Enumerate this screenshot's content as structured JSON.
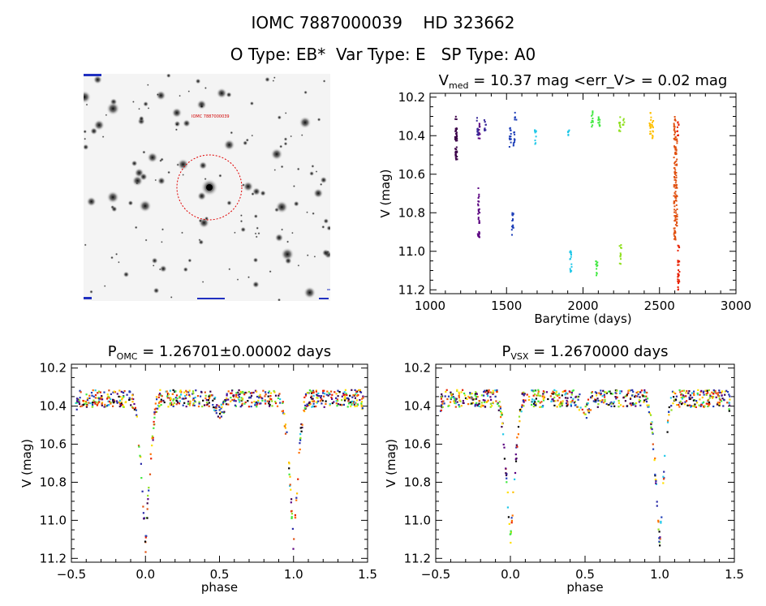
{
  "header": {
    "line1": "IOMC 7887000039    HD 323662",
    "line2": "O Type: EB*  Var Type: E   SP Type: A0"
  },
  "image_panel": {
    "label": "IOMC 7887000039"
  },
  "chart_data": [
    {
      "type": "scatter",
      "title_main": "V",
      "title_sub": "med",
      "title_rest": " = 10.37 mag <err_V> = 0.02 mag",
      "xlabel": "Barytime (days)",
      "ylabel": "V (mag)",
      "xlim": [
        1000,
        3000
      ],
      "ylim": [
        11.22,
        10.18
      ],
      "xticks": [
        1000,
        1500,
        2000,
        2500,
        3000
      ],
      "xticklabels": [
        "1000",
        "1500",
        "2000",
        "2500",
        "3000"
      ],
      "yticks": [
        10.2,
        10.4,
        10.6,
        10.8,
        11.0,
        11.2
      ],
      "yticklabels": [
        "10.2",
        "10.4",
        "10.6",
        "10.8",
        "11.0",
        "11.2"
      ],
      "series": [
        {
          "color": "#3a0048",
          "segments": [
            [
              1170,
              10.3,
              10.5
            ],
            [
              1172,
              10.38,
              10.54
            ]
          ]
        },
        {
          "color": "#5a0080",
          "segments": [
            [
              1318,
              10.67,
              10.93
            ],
            [
              1322,
              10.33,
              10.42
            ]
          ]
        },
        {
          "color": "#3a2a9a",
          "segments": [
            [
              1360,
              10.3,
              10.38
            ],
            [
              1312,
              10.3,
              10.4
            ]
          ]
        },
        {
          "color": "#1e3fb8",
          "segments": [
            [
              1525,
              10.36,
              10.47
            ],
            [
              1540,
              10.8,
              10.93
            ],
            [
              1550,
              10.38,
              10.46
            ],
            [
              1560,
              10.28,
              10.33
            ]
          ]
        },
        {
          "color": "#20c8e8",
          "segments": [
            [
              1690,
              10.37,
              10.45
            ],
            [
              1905,
              10.36,
              10.4
            ],
            [
              1920,
              10.98,
              11.11
            ]
          ]
        },
        {
          "color": "#40e840",
          "segments": [
            [
              2060,
              10.27,
              10.36
            ],
            [
              2090,
              11.05,
              11.15
            ],
            [
              2105,
              10.27,
              10.35
            ]
          ]
        },
        {
          "color": "#90e020",
          "segments": [
            [
              2240,
              10.3,
              10.38
            ],
            [
              2245,
              10.96,
              11.07
            ],
            [
              2265,
              10.31,
              10.36
            ]
          ]
        },
        {
          "color": "#ffc000",
          "segments": [
            [
              2440,
              10.28,
              10.4
            ],
            [
              2455,
              10.32,
              10.42
            ]
          ]
        },
        {
          "color": "#e05010",
          "segments": [
            [
              2600,
              10.3,
              10.96
            ],
            [
              2610,
              10.4,
              10.9
            ]
          ]
        },
        {
          "color": "#e82000",
          "segments": [
            [
              2620,
              10.32,
              10.4
            ],
            [
              2625,
              10.95,
              11.2
            ]
          ]
        }
      ]
    },
    {
      "type": "scatter",
      "title_main": "P",
      "title_sub": "OMC",
      "title_rest": " = 1.26701±0.00002 days",
      "xlabel": "phase",
      "ylabel": "V (mag)",
      "xlim": [
        -0.5,
        1.5
      ],
      "ylim": [
        11.22,
        10.18
      ],
      "xticks": [
        -0.5,
        0.0,
        0.5,
        1.0,
        1.5
      ],
      "xticklabels": [
        "−0.5",
        "0.0",
        "0.5",
        "1.0",
        "1.5"
      ],
      "yticks": [
        10.2,
        10.4,
        10.6,
        10.8,
        11.0,
        11.2
      ],
      "yticklabels": [
        "10.2",
        "10.4",
        "10.6",
        "10.8",
        "11.0",
        "11.2"
      ],
      "light_curve": {
        "max_mag": 10.36,
        "min_mag": 11.14,
        "eclipse_phase": 0.0,
        "secondary_phase": 0.5,
        "secondary_mag": 10.5,
        "eclipse_halfwidth": 0.09
      }
    },
    {
      "type": "scatter",
      "title_main": "P",
      "title_sub": "VSX",
      "title_rest": " = 1.2670000 days",
      "xlabel": "phase",
      "ylabel": "V (mag)",
      "xlim": [
        -0.5,
        1.5
      ],
      "ylim": [
        11.22,
        10.18
      ],
      "xticks": [
        -0.5,
        0.0,
        0.5,
        1.0,
        1.5
      ],
      "xticklabels": [
        "−0.5",
        "0.0",
        "0.5",
        "1.0",
        "1.5"
      ],
      "yticks": [
        10.2,
        10.4,
        10.6,
        10.8,
        11.0,
        11.2
      ],
      "yticklabels": [
        "10.2",
        "10.4",
        "10.6",
        "10.8",
        "11.0",
        "11.2"
      ],
      "light_curve": {
        "max_mag": 10.36,
        "min_mag": 11.14,
        "eclipse_phase": 0.0,
        "secondary_phase": 0.5,
        "secondary_mag": 10.5,
        "eclipse_halfwidth": 0.09
      }
    }
  ]
}
